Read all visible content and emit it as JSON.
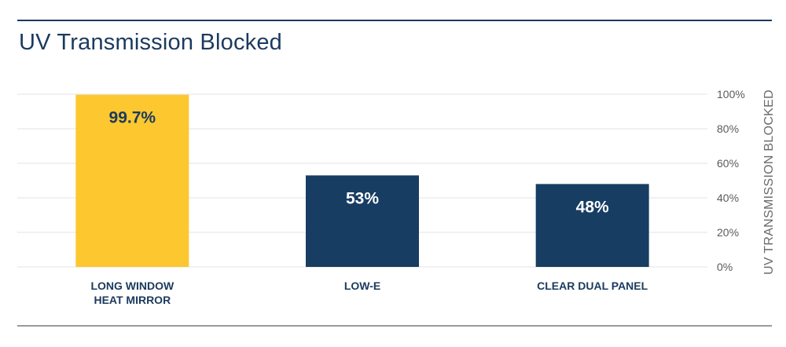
{
  "chart_data": {
    "type": "bar",
    "title": "UV Transmission Blocked",
    "ylabel": "UV TRANSMISSION BLOCKED",
    "xlabel": "",
    "categories": [
      [
        "LONG WINDOW",
        "HEAT MIRROR"
      ],
      [
        "LOW-E"
      ],
      [
        "CLEAR DUAL PANEL"
      ]
    ],
    "values": [
      99.7,
      53,
      48
    ],
    "data_labels": [
      "99.7%",
      "53%",
      "48%"
    ],
    "ylim": [
      0,
      100
    ],
    "yticks": [
      0,
      20,
      40,
      60,
      80,
      100
    ],
    "ytick_labels": [
      "0%",
      "20%",
      "40%",
      "60%",
      "80%",
      "100%"
    ],
    "y_axis_side": "right",
    "grid": true,
    "colors": {
      "highlight_bar": "#fcc72f",
      "bar": "#173d63",
      "highlight_label": "#1b3a5e",
      "bar_label": "#ffffff",
      "grid": "#e3e3e3"
    }
  }
}
